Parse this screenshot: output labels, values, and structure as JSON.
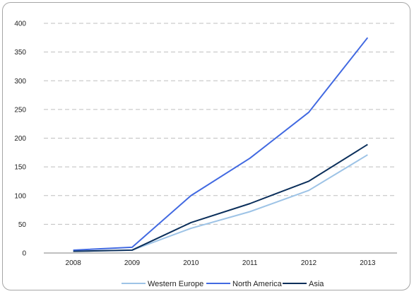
{
  "chart_data": {
    "type": "line",
    "title": "",
    "xlabel": "",
    "ylabel": "",
    "categories": [
      "2008",
      "2009",
      "2010",
      "2011",
      "2012",
      "2013"
    ],
    "ylim": [
      0,
      400
    ],
    "yticks": [
      "0",
      "50",
      "100",
      "150",
      "200",
      "250",
      "300",
      "350",
      "400"
    ],
    "grid": true,
    "legend_position": "bottom",
    "series": [
      {
        "name": "Western Europe",
        "color": "#9dc3e6",
        "values": [
          3,
          5,
          43,
          72,
          109,
          171
        ]
      },
      {
        "name": "North America",
        "color": "#4169e1",
        "values": [
          5,
          10,
          100,
          165,
          245,
          375
        ]
      },
      {
        "name": "Asia",
        "color": "#0b2f5b",
        "values": [
          3,
          5,
          53,
          86,
          125,
          189
        ]
      }
    ]
  }
}
